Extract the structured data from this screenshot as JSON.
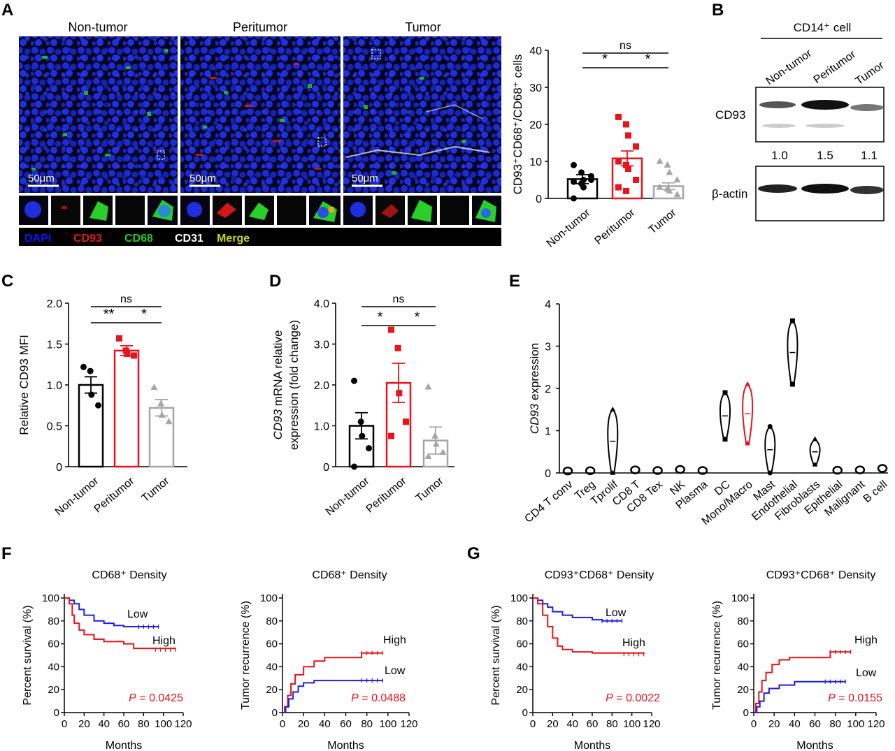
{
  "panels": {
    "A": "A",
    "B": "B",
    "C": "C",
    "D": "D",
    "E": "E",
    "F": "F",
    "G": "G"
  },
  "colors": {
    "black": "#000000",
    "red": "#e8141b",
    "gray": "#a6a6a6",
    "blue": "#1f1fe0",
    "dapi": "#1010ff",
    "cd93": "#e31a1c",
    "cd68": "#22cc22",
    "cd31": "#ffffff",
    "merge": "#c8d400"
  },
  "panelA": {
    "image_titles": [
      "Non-tumor",
      "Peritumor",
      "Tumor"
    ],
    "scale_bar": "50μm",
    "channel_legend": [
      {
        "label": "DAPI",
        "color": "#1010ff"
      },
      {
        "label": "CD93",
        "color": "#e31a1c"
      },
      {
        "label": "CD68",
        "color": "#22cc22"
      },
      {
        "label": "CD31",
        "color": "#ffffff"
      },
      {
        "label": "Merge",
        "color": "#c8d400"
      }
    ]
  },
  "panelB": {
    "header": "CD14⁺ cell",
    "lanes": [
      "Non-tumor",
      "Peritumor",
      "Tumor"
    ],
    "bands": [
      "CD93",
      "β-actin"
    ],
    "ratios": [
      "1.0",
      "1.5",
      "1.1"
    ]
  },
  "panelF": {
    "left": {
      "title": "CD68⁺ Density",
      "ylabel": "Percent survival (%)",
      "xlabel": "Months",
      "p": "P = 0.0425",
      "high": "High",
      "low": "Low"
    },
    "right": {
      "title": "CD68⁺ Density",
      "ylabel": "Tumor recurrence (%)",
      "xlabel": "Months",
      "p": "P = 0.0488",
      "high": "High",
      "low": "Low"
    }
  },
  "panelG": {
    "left": {
      "title": "CD93⁺CD68⁺ Density",
      "ylabel": "Percent survival (%)",
      "xlabel": "Months",
      "p": "P = 0.0022",
      "high": "High",
      "low": "Low"
    },
    "right": {
      "title": "CD93⁺CD68⁺ Density",
      "ylabel": "Tumor recurrence (%)",
      "xlabel": "Months",
      "p": "P = 0.0155",
      "high": "High",
      "low": "Low"
    }
  },
  "chart_data": [
    {
      "id": "A-bar",
      "type": "bar",
      "ylabel": "CD93⁺CD68⁺/CD68⁺ cells",
      "categories": [
        "Non-tumor",
        "Peritumor",
        "Tumor"
      ],
      "values": [
        5.2,
        10.8,
        3.3
      ],
      "sem": [
        1.2,
        2.0,
        0.9
      ],
      "points": [
        [
          9,
          7,
          5,
          5,
          4.5,
          4,
          3,
          6,
          0
        ],
        [
          22,
          20,
          17,
          14,
          10,
          9,
          8,
          5,
          3,
          2
        ],
        [
          10,
          9,
          7,
          5,
          3,
          2.5,
          2,
          1
        ]
      ],
      "ylim": [
        0,
        40
      ],
      "yticks": [
        0,
        10,
        20,
        30,
        40
      ],
      "significance": [
        {
          "from": 0,
          "to": 2,
          "label": "ns"
        },
        {
          "from": 0,
          "to": 1,
          "label": "*"
        },
        {
          "from": 1,
          "to": 2,
          "label": "*"
        }
      ]
    },
    {
      "id": "C-bar",
      "type": "bar",
      "ylabel": "Relative CD93 MFI",
      "categories": [
        "Non-tumor",
        "Peritumor",
        "Tumor"
      ],
      "values": [
        1.0,
        1.42,
        0.72
      ],
      "sem": [
        0.1,
        0.06,
        0.1
      ],
      "points": [
        [
          1.22,
          1.17,
          0.88,
          0.75
        ],
        [
          1.57,
          1.42,
          1.38,
          1.36
        ],
        [
          0.97,
          0.77,
          0.63,
          0.55
        ]
      ],
      "ylim": [
        0,
        2.0
      ],
      "yticks": [
        "0",
        "0.5",
        "1.0",
        "1.5",
        "2.0"
      ],
      "significance": [
        {
          "from": 0,
          "to": 2,
          "label": "ns"
        },
        {
          "from": 0,
          "to": 1,
          "label": "**"
        },
        {
          "from": 1,
          "to": 2,
          "label": "*"
        }
      ]
    },
    {
      "id": "D-bar",
      "type": "bar",
      "ylabel": "CD93 mRNA relative expression (fold change)",
      "ylabel_line1_italic": "CD93",
      "ylabel_line1_rest": " mRNA relative",
      "ylabel_line2": "expression (fold change)",
      "categories": [
        "Non-tumor",
        "Peritumor",
        "Tumor"
      ],
      "values": [
        1.0,
        2.05,
        0.64
      ],
      "sem": [
        0.32,
        0.48,
        0.33
      ],
      "points": [
        [
          2.1,
          1.1,
          0.75,
          0.45,
          0.0
        ],
        [
          3.35,
          2.9,
          1.8,
          1.1,
          0.75
        ],
        [
          1.95,
          0.75,
          0.55,
          0.35,
          0.25
        ]
      ],
      "ylim": [
        0,
        4.0
      ],
      "yticks": [
        "0",
        "1.0",
        "2.0",
        "3.0",
        "4.0"
      ],
      "significance": [
        {
          "from": 0,
          "to": 2,
          "label": "ns"
        },
        {
          "from": 0,
          "to": 1,
          "label": "*"
        },
        {
          "from": 1,
          "to": 2,
          "label": "*"
        }
      ]
    },
    {
      "id": "E-violin",
      "type": "violin",
      "ylabel_italic": "CD93",
      "ylabel_rest": " expression",
      "ylim": [
        0,
        4
      ],
      "yticks": [
        0,
        1,
        2,
        3,
        4
      ],
      "categories": [
        "CD4 T conv",
        "Treg",
        "Tprolif",
        "CD8 T",
        "CD8 Tex",
        "NK",
        "Plasma",
        "DC",
        "Mono/Macro",
        "Mast",
        "Endothelial",
        "Fibroblasts",
        "Epithelial",
        "Malignant",
        "B cell"
      ],
      "ranges": [
        [
          0,
          0.03
        ],
        [
          0,
          0.04
        ],
        [
          0,
          1.5
        ],
        [
          0,
          0.08
        ],
        [
          0,
          0.05
        ],
        [
          0,
          0.1
        ],
        [
          0,
          0.05
        ],
        [
          0.8,
          1.9
        ],
        [
          0.7,
          2.1
        ],
        [
          0,
          1.1
        ],
        [
          2.1,
          3.6
        ],
        [
          0.2,
          0.8
        ],
        [
          0,
          0.06
        ],
        [
          0,
          0.08
        ],
        [
          0,
          0.15
        ]
      ],
      "highlight": "Mono/Macro"
    },
    {
      "id": "F-survival",
      "type": "line",
      "xlabel": "Months",
      "ylabel": "Percent survival (%)",
      "xlim": [
        0,
        120
      ],
      "ylim": [
        0,
        100
      ],
      "xticks": [
        0,
        20,
        40,
        60,
        80,
        100,
        120
      ],
      "yticks": [
        0,
        20,
        40,
        60,
        80,
        100
      ],
      "series": [
        {
          "name": "Low",
          "x": [
            0,
            5,
            10,
            15,
            20,
            30,
            40,
            50,
            60,
            95
          ],
          "y": [
            100,
            98,
            95,
            90,
            85,
            80,
            78,
            76,
            75,
            75
          ]
        },
        {
          "name": "High",
          "x": [
            0,
            5,
            8,
            10,
            15,
            20,
            30,
            40,
            60,
            70,
            112
          ],
          "y": [
            100,
            95,
            85,
            78,
            72,
            68,
            64,
            62,
            60,
            56,
            55
          ]
        }
      ]
    },
    {
      "id": "F-recurrence",
      "type": "line",
      "xlabel": "Months",
      "ylabel": "Tumor recurrence (%)",
      "xlim": [
        0,
        120
      ],
      "ylim": [
        0,
        100
      ],
      "xticks": [
        0,
        20,
        40,
        60,
        80,
        100,
        120
      ],
      "yticks": [
        0,
        20,
        40,
        60,
        80,
        100
      ],
      "series": [
        {
          "name": "High",
          "x": [
            0,
            2,
            5,
            8,
            12,
            20,
            30,
            40,
            70,
            75,
            95
          ],
          "y": [
            0,
            5,
            15,
            25,
            33,
            40,
            45,
            48,
            48,
            52,
            52
          ]
        },
        {
          "name": "Low",
          "x": [
            0,
            3,
            6,
            10,
            15,
            20,
            30,
            95
          ],
          "y": [
            0,
            5,
            12,
            18,
            23,
            26,
            28,
            28
          ]
        }
      ]
    },
    {
      "id": "G-survival",
      "type": "line",
      "xlabel": "Months",
      "ylabel": "Percent survival (%)",
      "xlim": [
        0,
        120
      ],
      "ylim": [
        0,
        100
      ],
      "xticks": [
        0,
        20,
        40,
        60,
        80,
        100,
        120
      ],
      "yticks": [
        0,
        20,
        40,
        60,
        80,
        100
      ],
      "series": [
        {
          "name": "Low",
          "x": [
            0,
            5,
            10,
            15,
            20,
            30,
            40,
            60,
            70,
            90
          ],
          "y": [
            100,
            98,
            95,
            92,
            88,
            85,
            83,
            81,
            80,
            80
          ]
        },
        {
          "name": "High",
          "x": [
            0,
            5,
            10,
            15,
            20,
            25,
            30,
            40,
            60,
            112
          ],
          "y": [
            100,
            95,
            85,
            75,
            65,
            58,
            55,
            53,
            52,
            51
          ]
        }
      ]
    },
    {
      "id": "G-recurrence",
      "type": "line",
      "xlabel": "Months",
      "ylabel": "Tumor recurrence (%)",
      "xlim": [
        0,
        120
      ],
      "ylim": [
        0,
        100
      ],
      "xticks": [
        0,
        20,
        40,
        60,
        80,
        100,
        120
      ],
      "yticks": [
        0,
        20,
        40,
        60,
        80,
        100
      ],
      "series": [
        {
          "name": "High",
          "x": [
            0,
            2,
            5,
            8,
            12,
            18,
            25,
            35,
            70,
            75,
            95
          ],
          "y": [
            0,
            8,
            18,
            28,
            35,
            42,
            46,
            48,
            48,
            53,
            53
          ]
        },
        {
          "name": "Low",
          "x": [
            0,
            3,
            6,
            10,
            15,
            25,
            40,
            90
          ],
          "y": [
            0,
            5,
            10,
            17,
            21,
            24,
            27,
            27
          ]
        }
      ]
    }
  ]
}
